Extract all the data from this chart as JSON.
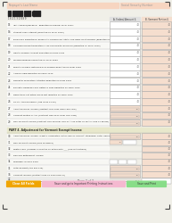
{
  "bg_color": "#f0efe8",
  "header_bg": "#f7d5c0",
  "header_label1": "Taxpayer's Last Name",
  "header_label2": "Social Security Number",
  "col_a_label": "A. Federal Amount $",
  "col_b_label": "B. Vermont Portion $",
  "col_b_bg": "#f5dece",
  "barcode_color": "#222222",
  "line_color": "#bbbbbb",
  "text_color": "#222222",
  "part4_header_bg": "#e8e8cc",
  "part4_label": "PART 4. Adjustment for Vermont Exempt Income",
  "btn1_color": "#f0a500",
  "btn1_text": "Clear All Fields",
  "btn2_color": "#f5b8d0",
  "btn2_text": "Save and go to Important Printing Instructions",
  "btn3_color": "#88dd88",
  "btn3_text": "Save and Print",
  "page_label": "Page 2 of 3",
  "schedule_label": "Schedule IN-113",
  "rev_label": "Rev. 12/18",
  "rows": [
    {
      "num": "15",
      "text": "IRA, Alimony/NRTPPLE - Reported on Federal Form 1040:",
      "col_a": true,
      "col_b": true
    },
    {
      "num": "16",
      "text": "Student Loan Interest (Reported on Form 1040)",
      "col_a": true,
      "col_b": true
    },
    {
      "num": "17",
      "text": "Employee Deductions: Reservists, Performing Artists, Fee-basis Govt Officials (Reported on Form 1040)",
      "col_a": true,
      "col_b": true
    },
    {
      "num": "18",
      "text": "Self-Employment Deductions: Tax and Health Insurance (Reported on Form 1040)",
      "col_a": true,
      "col_b": true
    },
    {
      "num": "19",
      "text": "Health Savings Account Reported on Form 1040",
      "col_a": true,
      "col_b": true
    },
    {
      "num": "20",
      "text": "Moving Expenses Reported on Form 3903",
      "col_a": true,
      "col_b": true
    },
    {
      "num": "21",
      "text": "Penalty on Early Withdrawal of Savings Reported on Form 1099",
      "col_a": true,
      "col_b": true
    },
    {
      "num": "22",
      "text": "Alimony Paid Reported on Form 1040",
      "col_a": true,
      "col_b": true
    },
    {
      "num": "23",
      "text": "Domestic Production Activities Reported on Form 8903",
      "col_a": true,
      "col_b": true
    },
    {
      "num": "24",
      "text": "Educator Expenses and Tuition & Fees Reported on Form 1040",
      "col_a": true,
      "col_b": true
    },
    {
      "num": "25",
      "text": "Deductions not listed above but reported on Form 1040",
      "col_a": true,
      "col_b": true
    },
    {
      "num": "26",
      "text": "TOTAL ADJUSTMENTS (Add Lines 14-25)",
      "col_a": true,
      "col_b": true
    },
    {
      "num": "27",
      "text": "Adjusted Gross Income (Subtract Line 26W from Line 14W)",
      "col_a": false,
      "col_b": true,
      "pink_a": true
    },
    {
      "num": "28",
      "text": "Vermont Portion of AGI (Subtract Line 26VT from Line 14W)",
      "col_a": false,
      "col_b": true,
      "pink_a": true
    },
    {
      "num": "29",
      "text": "Non-Vermont Income (Subtract Line 28 from Line 27; Also enter on Part 2, Line 21 below)",
      "col_a": false,
      "col_b": true,
      "pink_a": true
    }
  ],
  "part4_rows": [
    {
      "num": "30",
      "text": "Adjusted Gross Income. If Part 1 completed, enter Line 27 amount; otherwise, enter amount from Form IN-111, Line 7",
      "col_b": true,
      "pink_a": true
    },
    {
      "num": "31",
      "text": "Non-Vermont Income (Line 29 above)",
      "col_b": true,
      "small_boxes": true
    },
    {
      "num": "32",
      "text": "Military pay (Number of months on active duty ___ (See instructions)",
      "col_b": true
    },
    {
      "num": "33",
      "text": "Railroad Retirement Income",
      "col_b": true
    },
    {
      "num": "34",
      "text": "Municipal Income from:",
      "col_b": true,
      "sub_boxes": true
    },
    {
      "num": "35",
      "text": "Total Exempt (Add line 31a)",
      "col_b": true,
      "pink_a": true
    },
    {
      "num": "36",
      "text": "Vermont Income (Subtract Line 35 from Line 30)",
      "col_b": true,
      "pink_a": true
    },
    {
      "num": "37",
      "text": "INCOME ADJUSTMENT % (Divide Line 36 by Line 30 and to the fourth decimal place). Also enter on Form IN-111, Line 10 (See instructions)",
      "col_b": false,
      "last": true
    }
  ]
}
